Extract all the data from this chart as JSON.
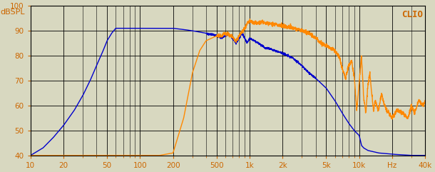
{
  "title": "CLIO",
  "ylabel": "dBSPL",
  "xmin": 10,
  "xmax": 40000,
  "ymin": 40,
  "ymax": 100,
  "yticks": [
    40,
    50,
    60,
    70,
    80,
    90,
    100
  ],
  "xticks": [
    10,
    20,
    50,
    100,
    200,
    500,
    1000,
    2000,
    5000,
    10000,
    20000,
    40000
  ],
  "xticklabels": [
    "10",
    "20",
    "50",
    "100",
    "200",
    "500",
    "1k",
    "2k",
    "5k",
    "10k",
    "Hz",
    "40k"
  ],
  "blue_color": "#0000cc",
  "orange_color": "#ff8800",
  "bg_color": "#d8d8c0",
  "grid_color": "#000000",
  "text_color": "#cc6600",
  "blue_data": [
    [
      10,
      40
    ],
    [
      13,
      43
    ],
    [
      16,
      47
    ],
    [
      20,
      52
    ],
    [
      25,
      58
    ],
    [
      30,
      64
    ],
    [
      35,
      70
    ],
    [
      40,
      76
    ],
    [
      45,
      81
    ],
    [
      50,
      86
    ],
    [
      55,
      89
    ],
    [
      60,
      91
    ],
    [
      70,
      91
    ],
    [
      80,
      91
    ],
    [
      100,
      91
    ],
    [
      120,
      91
    ],
    [
      150,
      91
    ],
    [
      200,
      91
    ],
    [
      250,
      90.5
    ],
    [
      300,
      90
    ],
    [
      350,
      89.5
    ],
    [
      400,
      89
    ],
    [
      450,
      88.5
    ],
    [
      500,
      88
    ],
    [
      550,
      87
    ],
    [
      600,
      88
    ],
    [
      650,
      88.5
    ],
    [
      700,
      87
    ],
    [
      750,
      85
    ],
    [
      800,
      87
    ],
    [
      850,
      89
    ],
    [
      900,
      87
    ],
    [
      950,
      85
    ],
    [
      1000,
      87
    ],
    [
      1100,
      86
    ],
    [
      1200,
      85
    ],
    [
      1300,
      84
    ],
    [
      1400,
      83
    ],
    [
      1500,
      83
    ],
    [
      1700,
      82
    ],
    [
      2000,
      81
    ],
    [
      2500,
      79
    ],
    [
      3000,
      76
    ],
    [
      3500,
      73
    ],
    [
      4000,
      71
    ],
    [
      5000,
      67
    ],
    [
      6000,
      62
    ],
    [
      7000,
      57
    ],
    [
      8000,
      53
    ],
    [
      9000,
      50
    ],
    [
      9500,
      49
    ],
    [
      10000,
      48
    ],
    [
      10500,
      44
    ],
    [
      11000,
      43
    ],
    [
      12000,
      42
    ],
    [
      15000,
      41
    ],
    [
      20000,
      40.5
    ],
    [
      30000,
      40
    ],
    [
      40000,
      40
    ]
  ],
  "orange_data": [
    [
      10,
      40
    ],
    [
      20,
      40
    ],
    [
      50,
      40
    ],
    [
      100,
      40
    ],
    [
      150,
      40
    ],
    [
      200,
      41
    ],
    [
      250,
      55
    ],
    [
      300,
      73
    ],
    [
      350,
      82
    ],
    [
      400,
      86
    ],
    [
      450,
      87
    ],
    [
      500,
      88
    ],
    [
      550,
      88
    ],
    [
      600,
      89
    ],
    [
      650,
      88.5
    ],
    [
      700,
      87.5
    ],
    [
      750,
      86
    ],
    [
      800,
      88
    ],
    [
      850,
      89.5
    ],
    [
      900,
      91
    ],
    [
      950,
      93
    ],
    [
      1000,
      94
    ],
    [
      1100,
      93
    ],
    [
      1200,
      93
    ],
    [
      1300,
      93.5
    ],
    [
      1400,
      93
    ],
    [
      1500,
      93
    ],
    [
      1700,
      92.5
    ],
    [
      2000,
      92
    ],
    [
      2500,
      91
    ],
    [
      3000,
      90
    ],
    [
      3500,
      89
    ],
    [
      4000,
      87
    ],
    [
      4500,
      85
    ],
    [
      5000,
      84
    ],
    [
      5500,
      83
    ],
    [
      6000,
      82
    ],
    [
      6500,
      80
    ],
    [
      7000,
      75
    ],
    [
      7500,
      71
    ],
    [
      8000,
      76
    ],
    [
      8500,
      78
    ],
    [
      9000,
      72
    ],
    [
      9500,
      58
    ],
    [
      10000,
      69
    ],
    [
      10500,
      80
    ],
    [
      11000,
      63
    ],
    [
      11500,
      57
    ],
    [
      12000,
      68
    ],
    [
      12500,
      73
    ],
    [
      13000,
      65
    ],
    [
      13500,
      58
    ],
    [
      14000,
      62
    ],
    [
      15000,
      58
    ],
    [
      16000,
      65
    ],
    [
      17000,
      60
    ],
    [
      18000,
      58
    ],
    [
      20000,
      55
    ],
    [
      22000,
      58
    ],
    [
      25000,
      57
    ],
    [
      28000,
      55
    ],
    [
      30000,
      60
    ],
    [
      32000,
      57
    ],
    [
      35000,
      62
    ],
    [
      38000,
      60
    ],
    [
      40000,
      62
    ]
  ]
}
